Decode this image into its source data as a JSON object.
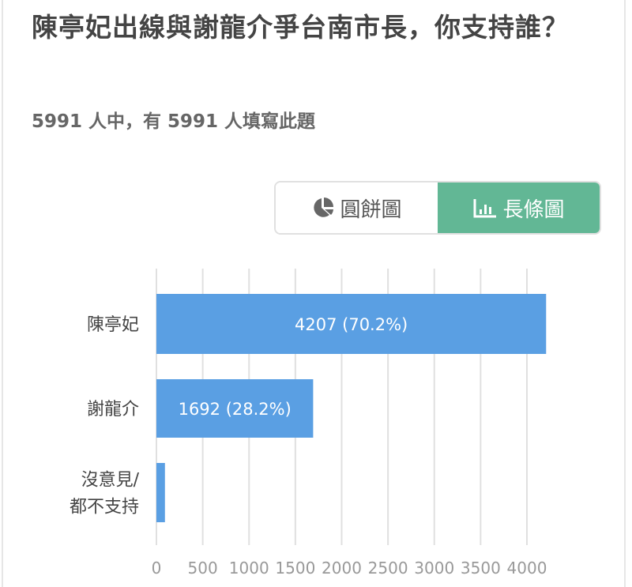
{
  "question": {
    "title": "陳亭妃出線與謝龍介爭台南市長，你支持誰？",
    "subtitle": "5991 人中，有 5991 人填寫此題"
  },
  "toggle": {
    "pie_label": "圓餅圖",
    "pie_icon": "pie-chart-icon",
    "bar_label": "長條圖",
    "bar_icon": "bar-chart-icon",
    "active": "bar",
    "active_color": "#62b795"
  },
  "chart_data": {
    "type": "bar",
    "orientation": "horizontal",
    "categories": [
      "陳亭妃",
      "謝龍介",
      "沒意見/都不支持"
    ],
    "category_lines": [
      [
        "陳亭妃"
      ],
      [
        "謝龍介"
      ],
      [
        "沒意見/",
        "都不支持"
      ]
    ],
    "values": [
      4207,
      1692,
      92
    ],
    "data_labels": [
      "4207 (70.2%)",
      "1692 (28.2%)",
      ""
    ],
    "xlim": [
      0,
      4200
    ],
    "xticks": [
      0,
      500,
      1000,
      1500,
      2000,
      2500,
      3000,
      3500,
      4000
    ],
    "grid": true,
    "bar_color": "#5a9fe3"
  }
}
